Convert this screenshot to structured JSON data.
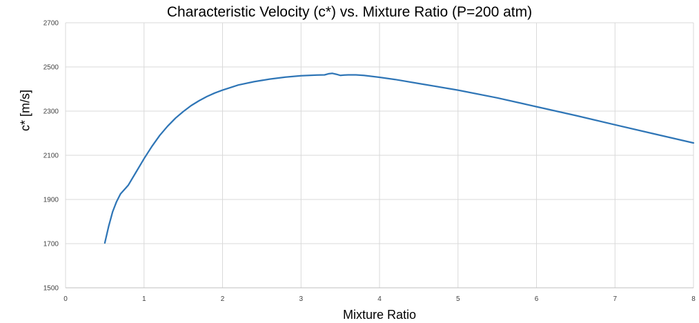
{
  "chart_data": {
    "type": "line",
    "title": "Characteristic Velocity (c*) vs. Mixture Ratio (P=200 atm)",
    "xlabel": "Mixture Ratio",
    "ylabel": "c* [m/s]",
    "xlim": [
      0,
      8
    ],
    "ylim": [
      1500,
      2700
    ],
    "x_ticks": [
      0,
      1,
      2,
      3,
      4,
      5,
      6,
      7,
      8
    ],
    "y_ticks": [
      1500,
      1700,
      1900,
      2100,
      2300,
      2500,
      2700
    ],
    "grid": true,
    "legend": "none",
    "series": [
      {
        "color": "#2e75b6",
        "x": [
          0.5,
          0.55,
          0.6,
          0.65,
          0.7,
          0.75,
          0.8,
          0.85,
          0.9,
          0.95,
          1.0,
          1.1,
          1.2,
          1.3,
          1.4,
          1.5,
          1.6,
          1.7,
          1.8,
          1.9,
          2.0,
          2.2,
          2.4,
          2.6,
          2.8,
          3.0,
          3.2,
          3.3,
          3.35,
          3.4,
          3.45,
          3.5,
          3.55,
          3.6,
          3.7,
          3.8,
          4.0,
          4.2,
          4.5,
          5.0,
          5.5,
          6.0,
          6.5,
          7.0,
          7.5,
          8.0
        ],
        "y": [
          1703,
          1780,
          1845,
          1890,
          1925,
          1945,
          1965,
          1995,
          2025,
          2055,
          2085,
          2140,
          2190,
          2232,
          2268,
          2298,
          2325,
          2347,
          2366,
          2382,
          2395,
          2418,
          2433,
          2445,
          2454,
          2460,
          2463,
          2464,
          2469,
          2471,
          2467,
          2462,
          2463,
          2464,
          2464,
          2462,
          2453,
          2443,
          2425,
          2395,
          2360,
          2320,
          2280,
          2238,
          2197,
          2156
        ]
      }
    ]
  }
}
